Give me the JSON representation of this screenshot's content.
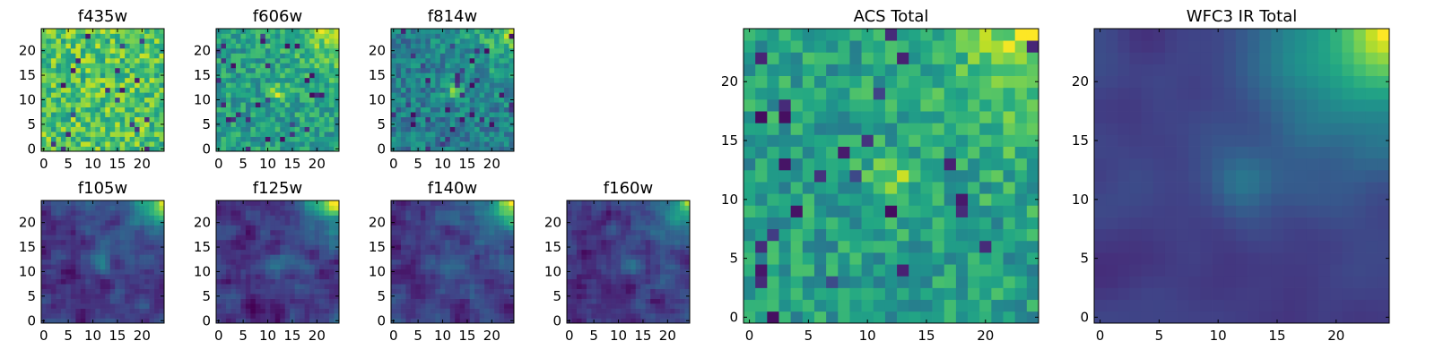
{
  "chart_data": [
    {
      "type": "heatmap",
      "title": "f435w",
      "xticks": [
        0,
        5,
        10,
        15,
        20
      ],
      "yticks": [
        0,
        5,
        10,
        15,
        20
      ],
      "xlim": [
        -0.5,
        24.5
      ],
      "ylim": [
        -0.5,
        24.5
      ],
      "colormap": "viridis",
      "grid": false
    },
    {
      "type": "heatmap",
      "title": "f606w",
      "xticks": [
        0,
        5,
        10,
        15,
        20
      ],
      "yticks": [
        0,
        5,
        10,
        15,
        20
      ],
      "xlim": [
        -0.5,
        24.5
      ],
      "ylim": [
        -0.5,
        24.5
      ],
      "colormap": "viridis",
      "grid": false
    },
    {
      "type": "heatmap",
      "title": "f814w",
      "xticks": [
        0,
        5,
        10,
        15,
        20
      ],
      "yticks": [
        0,
        5,
        10,
        15,
        20
      ],
      "xlim": [
        -0.5,
        24.5
      ],
      "ylim": [
        -0.5,
        24.5
      ],
      "colormap": "viridis",
      "grid": false
    },
    {
      "type": "heatmap",
      "title": "f105w",
      "xticks": [
        0,
        5,
        10,
        15,
        20
      ],
      "yticks": [
        0,
        5,
        10,
        15,
        20
      ],
      "xlim": [
        -0.5,
        24.5
      ],
      "ylim": [
        -0.5,
        24.5
      ],
      "colormap": "viridis",
      "grid": false
    },
    {
      "type": "heatmap",
      "title": "f125w",
      "xticks": [
        0,
        5,
        10,
        15,
        20
      ],
      "yticks": [
        0,
        5,
        10,
        15,
        20
      ],
      "xlim": [
        -0.5,
        24.5
      ],
      "ylim": [
        -0.5,
        24.5
      ],
      "colormap": "viridis",
      "grid": false
    },
    {
      "type": "heatmap",
      "title": "f140w",
      "xticks": [
        0,
        5,
        10,
        15,
        20
      ],
      "yticks": [
        0,
        5,
        10,
        15,
        20
      ],
      "xlim": [
        -0.5,
        24.5
      ],
      "ylim": [
        -0.5,
        24.5
      ],
      "colormap": "viridis",
      "grid": false
    },
    {
      "type": "heatmap",
      "title": "f160w",
      "xticks": [
        0,
        5,
        10,
        15,
        20
      ],
      "yticks": [
        0,
        5,
        10,
        15,
        20
      ],
      "xlim": [
        -0.5,
        24.5
      ],
      "ylim": [
        -0.5,
        24.5
      ],
      "colormap": "viridis",
      "grid": false
    },
    {
      "type": "heatmap",
      "title": "ACS Total",
      "xticks": [
        0,
        5,
        10,
        15,
        20
      ],
      "yticks": [
        0,
        5,
        10,
        15,
        20
      ],
      "xlim": [
        -0.5,
        24.5
      ],
      "ylim": [
        -0.5,
        24.5
      ],
      "colormap": "viridis",
      "grid": false
    },
    {
      "type": "heatmap",
      "title": "WFC3 IR Total",
      "xticks": [
        0,
        5,
        10,
        15,
        20
      ],
      "yticks": [
        0,
        5,
        10,
        15,
        20
      ],
      "xlim": [
        -0.5,
        24.5
      ],
      "ylim": [
        -0.5,
        24.5
      ],
      "colormap": "viridis",
      "grid": false
    }
  ]
}
